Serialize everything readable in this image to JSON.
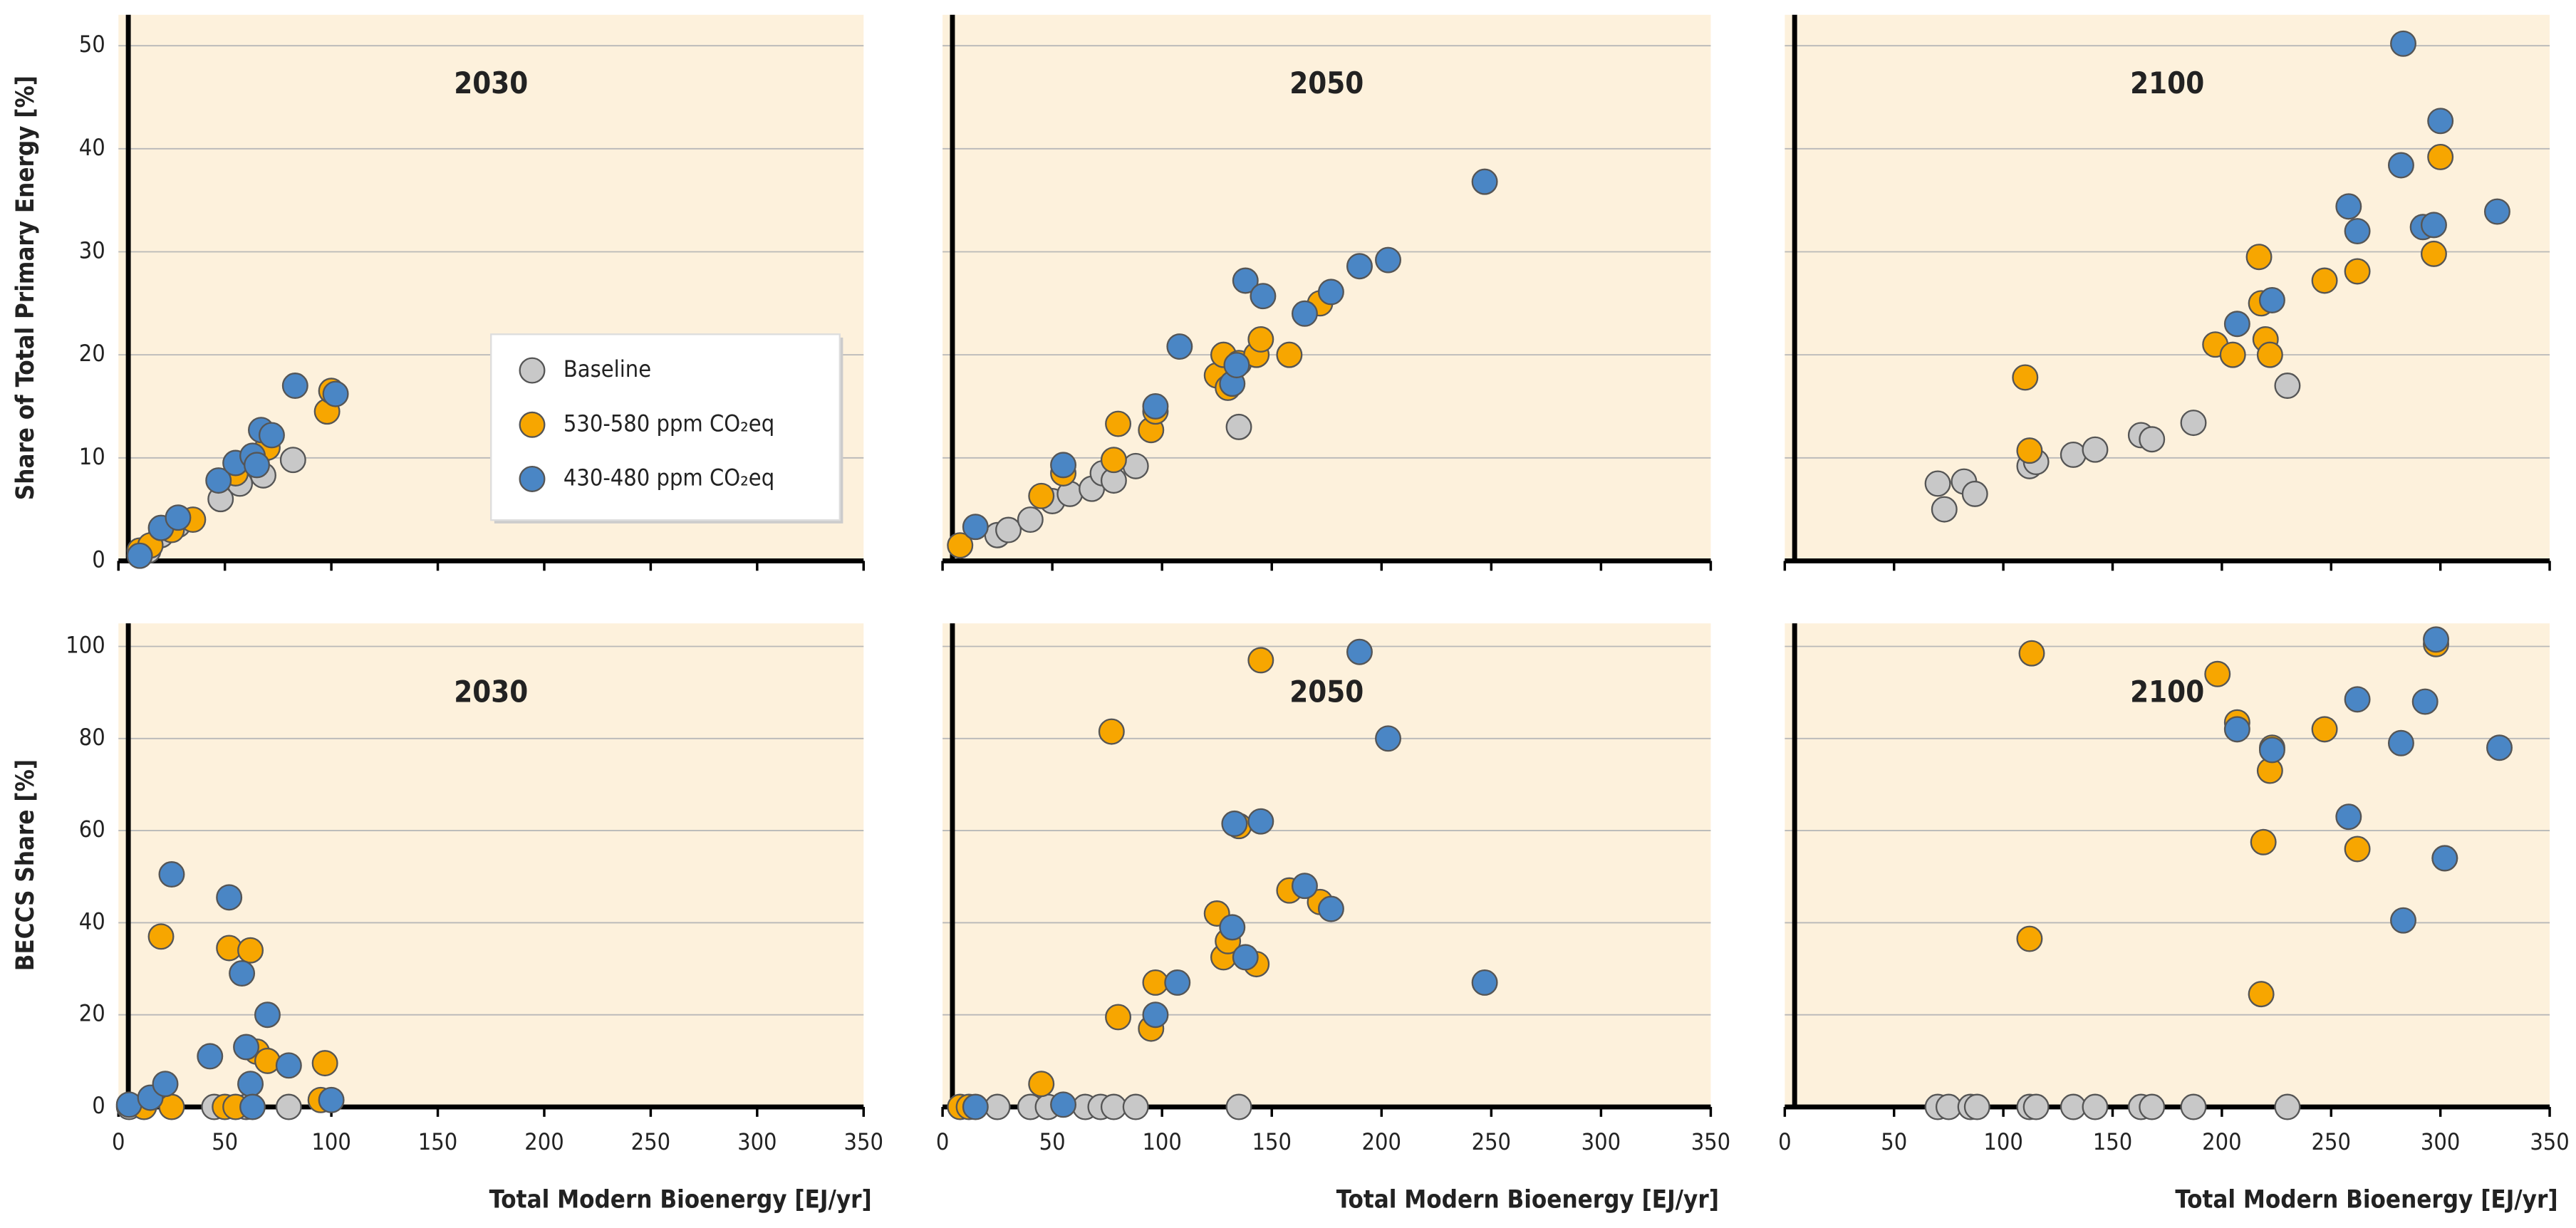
{
  "chart_data": [
    {
      "type": "scatter",
      "title": "2030",
      "ylabel": "Share of Total Primary Energy [%]",
      "legend": "center",
      "xlim": [
        0,
        350
      ],
      "xticks": [
        0,
        50,
        100,
        150,
        200,
        250,
        300,
        350
      ],
      "ylim": [
        0,
        53
      ],
      "yticks": [
        0,
        10,
        20,
        30,
        40,
        50
      ],
      "grid": true,
      "series": [
        {
          "name": "Baseline",
          "color": "#c8c8c8",
          "x": [
            14,
            20,
            28,
            48,
            57,
            68,
            82
          ],
          "y": [
            1,
            2.5,
            3.5,
            6,
            7.5,
            8.3,
            9.8
          ]
        },
        {
          "name": "530-580 ppm CO₂eq",
          "color": "#f7a600",
          "x": [
            10,
            15,
            25,
            35,
            55,
            65,
            70,
            98,
            100
          ],
          "y": [
            1,
            1.5,
            3,
            4,
            8.5,
            10,
            11,
            14.5,
            16.5
          ]
        },
        {
          "name": "430-480 ppm CO₂eq",
          "color": "#4a86c5",
          "x": [
            10,
            20,
            28,
            47,
            55,
            63,
            65,
            67,
            72,
            83,
            102
          ],
          "y": [
            0.5,
            3.2,
            4.2,
            7.8,
            9.5,
            10.2,
            9.3,
            12.7,
            12.2,
            17,
            16.2
          ]
        }
      ]
    },
    {
      "type": "scatter",
      "title": "2050",
      "xlim": [
        0,
        350
      ],
      "xticks": [
        0,
        50,
        100,
        150,
        200,
        250,
        300,
        350
      ],
      "ylim": [
        0,
        53
      ],
      "yticks": [
        0,
        10,
        20,
        30,
        40,
        50
      ],
      "grid": true,
      "series": [
        {
          "color": "#c8c8c8",
          "x": [
            25,
            30,
            40,
            50,
            58,
            68,
            73,
            78,
            88,
            135
          ],
          "y": [
            2.5,
            3,
            4,
            5.8,
            6.5,
            7,
            8.5,
            7.8,
            9.2,
            13
          ]
        },
        {
          "color": "#f7a600",
          "x": [
            8,
            45,
            55,
            78,
            80,
            95,
            97,
            125,
            128,
            130,
            135,
            143,
            145,
            158,
            172
          ],
          "y": [
            1.5,
            6.3,
            8.5,
            9.8,
            13.3,
            12.7,
            14.5,
            18,
            20,
            16.8,
            19.2,
            20,
            21.5,
            20,
            25
          ]
        },
        {
          "color": "#4a86c5",
          "x": [
            15,
            55,
            97,
            108,
            132,
            134,
            138,
            146,
            165,
            177,
            190,
            203,
            247
          ],
          "y": [
            3.3,
            9.3,
            15,
            20.8,
            17.2,
            19,
            27.2,
            25.7,
            24,
            26.1,
            28.6,
            29.2,
            36.8
          ]
        }
      ]
    },
    {
      "type": "scatter",
      "title": "2100",
      "xlim": [
        0,
        350
      ],
      "xticks": [
        0,
        50,
        100,
        150,
        200,
        250,
        300,
        350
      ],
      "ylim": [
        0,
        53
      ],
      "yticks": [
        0,
        10,
        20,
        30,
        40,
        50
      ],
      "grid": true,
      "series": [
        {
          "color": "#c8c8c8",
          "x": [
            70,
            73,
            82,
            87,
            112,
            115,
            132,
            142,
            163,
            168,
            187,
            230
          ],
          "y": [
            7.5,
            5,
            7.7,
            6.5,
            9.2,
            9.6,
            10.3,
            10.8,
            12.2,
            11.8,
            13.4,
            17
          ]
        },
        {
          "color": "#f7a600",
          "x": [
            110,
            112,
            197,
            205,
            217,
            218,
            220,
            222,
            247,
            262,
            297,
            300
          ],
          "y": [
            17.8,
            10.7,
            21,
            20,
            29.5,
            25,
            21.5,
            20,
            27.2,
            28.1,
            29.8,
            39.2
          ]
        },
        {
          "color": "#4a86c5",
          "x": [
            207,
            223,
            258,
            262,
            282,
            283,
            292,
            297,
            300,
            326
          ],
          "y": [
            23,
            25.3,
            34.4,
            32,
            38.4,
            50.2,
            32.4,
            32.6,
            42.7,
            33.9
          ]
        }
      ]
    },
    {
      "type": "scatter",
      "title": "2030",
      "ylabel": "BECCS Share [%]",
      "xlabel": "Total Modern Bioenergy [EJ/yr]",
      "xlim": [
        0,
        350
      ],
      "xticks": [
        0,
        50,
        100,
        150,
        200,
        250,
        300,
        350
      ],
      "ylim": [
        0,
        105
      ],
      "yticks": [
        0,
        20,
        40,
        60,
        80,
        100
      ],
      "grid": true,
      "series": [
        {
          "color": "#c8c8c8",
          "x": [
            5,
            45,
            60,
            80
          ],
          "y": [
            0,
            0,
            0,
            0
          ]
        },
        {
          "color": "#f7a600",
          "x": [
            12,
            20,
            25,
            50,
            52,
            55,
            62,
            65,
            70,
            95,
            97
          ],
          "y": [
            0,
            37,
            0,
            0,
            34.5,
            0,
            34,
            12,
            10,
            1.5,
            9.5
          ]
        },
        {
          "color": "#4a86c5",
          "x": [
            5,
            15,
            22,
            25,
            43,
            52,
            58,
            60,
            62,
            63,
            70,
            80,
            100
          ],
          "y": [
            0.5,
            2,
            5,
            50.5,
            11,
            45.5,
            29,
            13,
            5,
            0,
            20,
            9,
            1.5
          ]
        }
      ]
    },
    {
      "type": "scatter",
      "title": "2050",
      "xlabel": "Total Modern Bioenergy [EJ/yr]",
      "xlim": [
        0,
        350
      ],
      "xticks": [
        0,
        50,
        100,
        150,
        200,
        250,
        300,
        350
      ],
      "ylim": [
        0,
        105
      ],
      "yticks": [
        0,
        20,
        40,
        60,
        80,
        100
      ],
      "grid": true,
      "series": [
        {
          "color": "#c8c8c8",
          "x": [
            25,
            40,
            48,
            65,
            72,
            78,
            88,
            135
          ],
          "y": [
            0,
            0,
            0,
            0,
            0,
            0,
            0,
            0
          ]
        },
        {
          "color": "#f7a600",
          "x": [
            8,
            12,
            45,
            77,
            80,
            95,
            97,
            125,
            128,
            130,
            135,
            143,
            145,
            158,
            172
          ],
          "y": [
            0,
            0,
            5,
            81.5,
            19.5,
            17,
            27,
            42,
            32.5,
            36,
            61,
            31,
            97,
            47,
            44.5
          ]
        },
        {
          "color": "#4a86c5",
          "x": [
            15,
            55,
            97,
            107,
            132,
            133,
            138,
            145,
            165,
            177,
            190,
            203,
            247
          ],
          "y": [
            0,
            0.5,
            20,
            27,
            39,
            61.5,
            32.5,
            62,
            48,
            43,
            98.8,
            80,
            27
          ]
        }
      ]
    },
    {
      "type": "scatter",
      "title": "2100",
      "xlabel": "Total Modern Bioenergy [EJ/yr]",
      "xlim": [
        0,
        350
      ],
      "xticks": [
        0,
        50,
        100,
        150,
        200,
        250,
        300,
        350
      ],
      "ylim": [
        0,
        105
      ],
      "yticks": [
        0,
        20,
        40,
        60,
        80,
        100
      ],
      "grid": true,
      "series": [
        {
          "color": "#c8c8c8",
          "x": [
            70,
            75,
            85,
            88,
            112,
            115,
            132,
            142,
            163,
            168,
            187,
            230
          ],
          "y": [
            0,
            0,
            0,
            0,
            0,
            0,
            0,
            0,
            0,
            0,
            0,
            0
          ]
        },
        {
          "color": "#f7a600",
          "x": [
            112,
            113,
            198,
            207,
            218,
            219,
            222,
            223,
            247,
            262,
            298,
            302
          ],
          "y": [
            36.5,
            98.5,
            94,
            83.5,
            24.5,
            57.5,
            73,
            78,
            82,
            56,
            100.5,
            54
          ]
        },
        {
          "color": "#4a86c5",
          "x": [
            207,
            223,
            258,
            262,
            282,
            283,
            293,
            298,
            302,
            327
          ],
          "y": [
            82,
            77.5,
            63,
            88.5,
            79,
            40.5,
            88,
            101.5,
            54,
            78
          ]
        }
      ]
    }
  ]
}
